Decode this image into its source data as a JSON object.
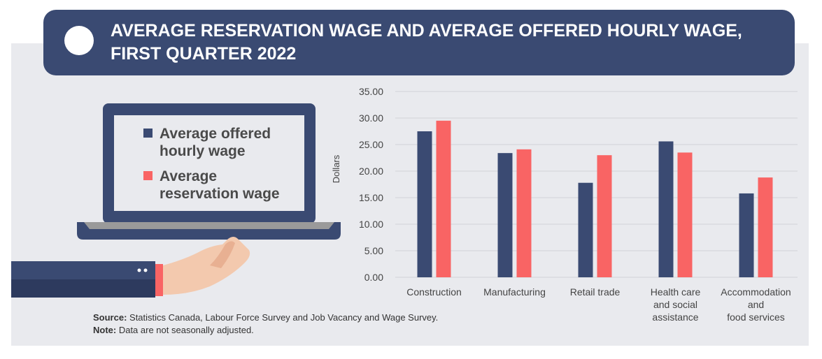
{
  "header": {
    "title_line1": "AVERAGE RESERVATION WAGE AND AVERAGE OFFERED HOURLY WAGE,",
    "title_line2": "FIRST QUARTER 2022"
  },
  "legend": [
    {
      "line1": "Average offered",
      "line2": "hourly wage",
      "color": "#3a4a72"
    },
    {
      "line1": "Average",
      "line2": "reservation wage",
      "color": "#f96464"
    }
  ],
  "notes": {
    "source_label": "Source:",
    "source_text": " Statistics Canada, Labour Force Survey and Job Vacancy and Wage Survey.",
    "note_label": "Note:",
    "note_text": " Data are not seasonally adjusted."
  },
  "chart_data": {
    "type": "bar",
    "ylabel": "Dollars",
    "ylim": [
      0,
      35
    ],
    "yticks": [
      "0.00",
      "5.00",
      "10.00",
      "15.00",
      "20.00",
      "25.00",
      "30.00",
      "35.00"
    ],
    "grid": true,
    "legend_placement": "left",
    "categories": [
      [
        "Construction"
      ],
      [
        "Manufacturing"
      ],
      [
        "Retail trade"
      ],
      [
        "Health care",
        "and social",
        "assistance"
      ],
      [
        "Accommodation",
        "and",
        "food services"
      ]
    ],
    "series": [
      {
        "name": "Average offered hourly wage",
        "color": "#3a4a72",
        "values": [
          27.5,
          23.4,
          17.8,
          25.6,
          15.8
        ]
      },
      {
        "name": "Average reservation wage",
        "color": "#f96464",
        "values": [
          29.5,
          24.1,
          23.0,
          23.5,
          18.8
        ]
      }
    ]
  }
}
